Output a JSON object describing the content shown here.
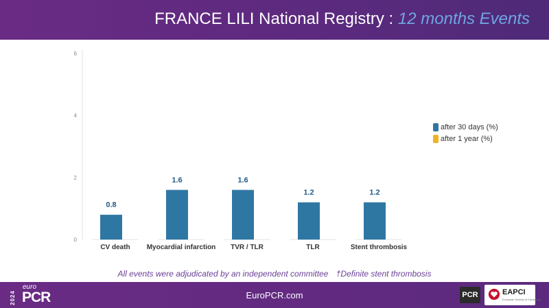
{
  "header": {
    "title_main": "FRANCE LILI National Registry",
    "title_sep": ":",
    "title_accent": "12 months Events"
  },
  "colors": {
    "series_30d": "#2f77a3",
    "series_1y": "#f0b323",
    "label": "#1f5a87",
    "axis": "#888888"
  },
  "chart_data": {
    "type": "bar",
    "categories": [
      "CV death",
      "Myocardial infarction",
      "TVR / TLR",
      "TLR",
      "Stent thrombosis"
    ],
    "series": [
      {
        "name": "after 30 days (%)",
        "values": [
          0.8,
          1.6,
          1.6,
          1.2,
          1.2
        ]
      },
      {
        "name": "after 1 year (%)",
        "values": [
          null,
          null,
          null,
          null,
          null
        ]
      }
    ],
    "value_labels": [
      "0.8",
      "1.6",
      "1.6",
      "1.2",
      "1.2"
    ],
    "ylim": [
      0,
      6
    ],
    "yticks": [
      0,
      2,
      4,
      6
    ],
    "title": "",
    "xlabel": "",
    "ylabel": "",
    "legend_position": "right"
  },
  "footnote": {
    "text1": "All events were adjudicated by an independent committee",
    "text2": "†Definite stent thrombosis"
  },
  "footer": {
    "year": "2024",
    "logo_euro": "euro",
    "logo_pcr": "PCR",
    "site": "EuroPCR.com",
    "pcr_badge": "PCR",
    "eapci_text": "EAPCI",
    "eapci_sub": "European Society of Cardiology"
  }
}
